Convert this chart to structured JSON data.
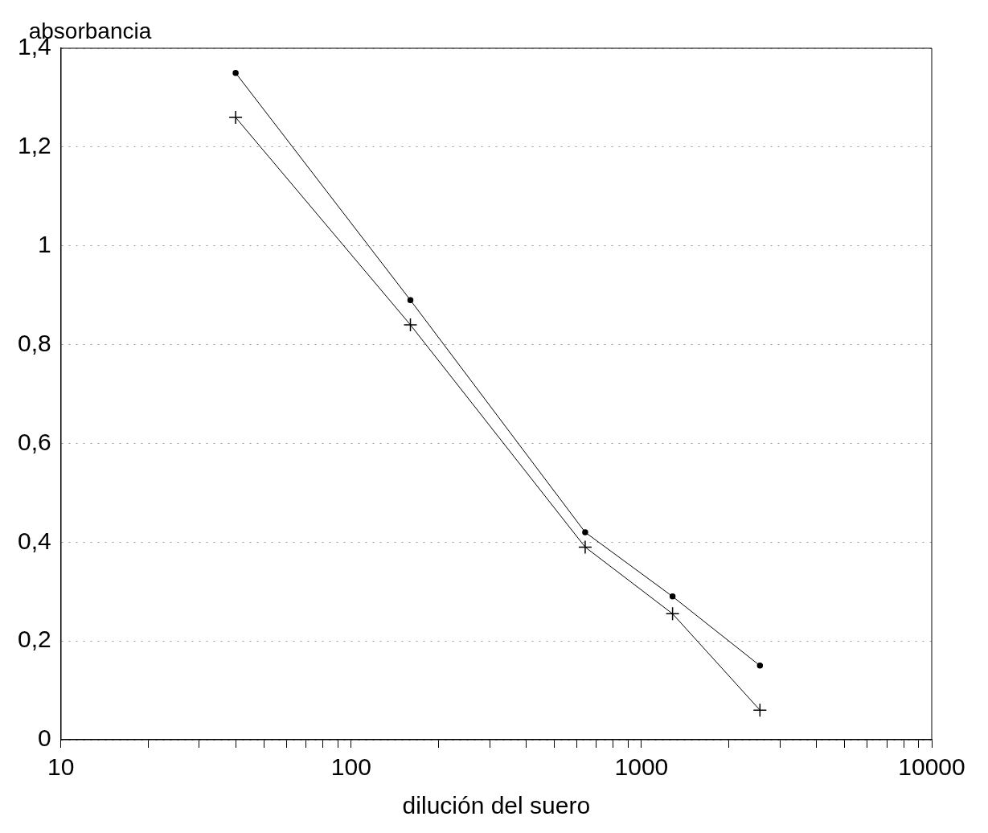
{
  "chart_data": {
    "type": "line",
    "xlabel": "dilución del suero",
    "ylabel": "absorbancia",
    "log": "x",
    "xlim": [
      10,
      10000
    ],
    "xticks": [
      10,
      {
        "value": 20,
        "label": null
      },
      {
        "value": 30,
        "label": null
      },
      {
        "value": 40,
        "label": null
      },
      {
        "value": 50,
        "label": null
      },
      {
        "value": 60,
        "label": null
      },
      {
        "value": 70,
        "label": null
      },
      {
        "value": 80,
        "label": null
      },
      {
        "value": 90,
        "label": null
      },
      100,
      {
        "value": 200,
        "label": null
      },
      {
        "value": 300,
        "label": null
      },
      {
        "value": 400,
        "label": null
      },
      {
        "value": 500,
        "label": null
      },
      {
        "value": 600,
        "label": null
      },
      {
        "value": 700,
        "label": null
      },
      {
        "value": 800,
        "label": null
      },
      {
        "value": 900,
        "label": null
      },
      1000,
      {
        "value": 2000,
        "label": null
      },
      {
        "value": 3000,
        "label": null
      },
      {
        "value": 4000,
        "label": null
      },
      {
        "value": 5000,
        "label": null
      },
      {
        "value": 6000,
        "label": null
      },
      {
        "value": 7000,
        "label": null
      },
      {
        "value": 8000,
        "label": null
      },
      {
        "value": 9000,
        "label": null
      },
      10000
    ],
    "ylim": [
      0,
      1.4
    ],
    "yticks": [
      0,
      {
        "value": 0.2,
        "label": "0,2"
      },
      {
        "value": 0.4,
        "label": "0,4"
      },
      {
        "value": 0.6,
        "label": "0,6"
      },
      {
        "value": 0.8,
        "label": "0,8"
      },
      1,
      {
        "value": 1.2,
        "label": "1,2"
      },
      {
        "value": 1.4,
        "label": "1,4"
      }
    ],
    "grid": "y",
    "legend": false,
    "line_style": "solid",
    "x": [
      40,
      160,
      640,
      1280,
      2560
    ],
    "series": [
      {
        "color": "#000000",
        "marker": "circle",
        "values": [
          1.35,
          0.89,
          0.42,
          0.29,
          0.15
        ]
      },
      {
        "color": "#000000",
        "marker": "cross",
        "values": [
          1.26,
          0.84,
          0.39,
          0.255,
          0.06
        ]
      }
    ]
  }
}
